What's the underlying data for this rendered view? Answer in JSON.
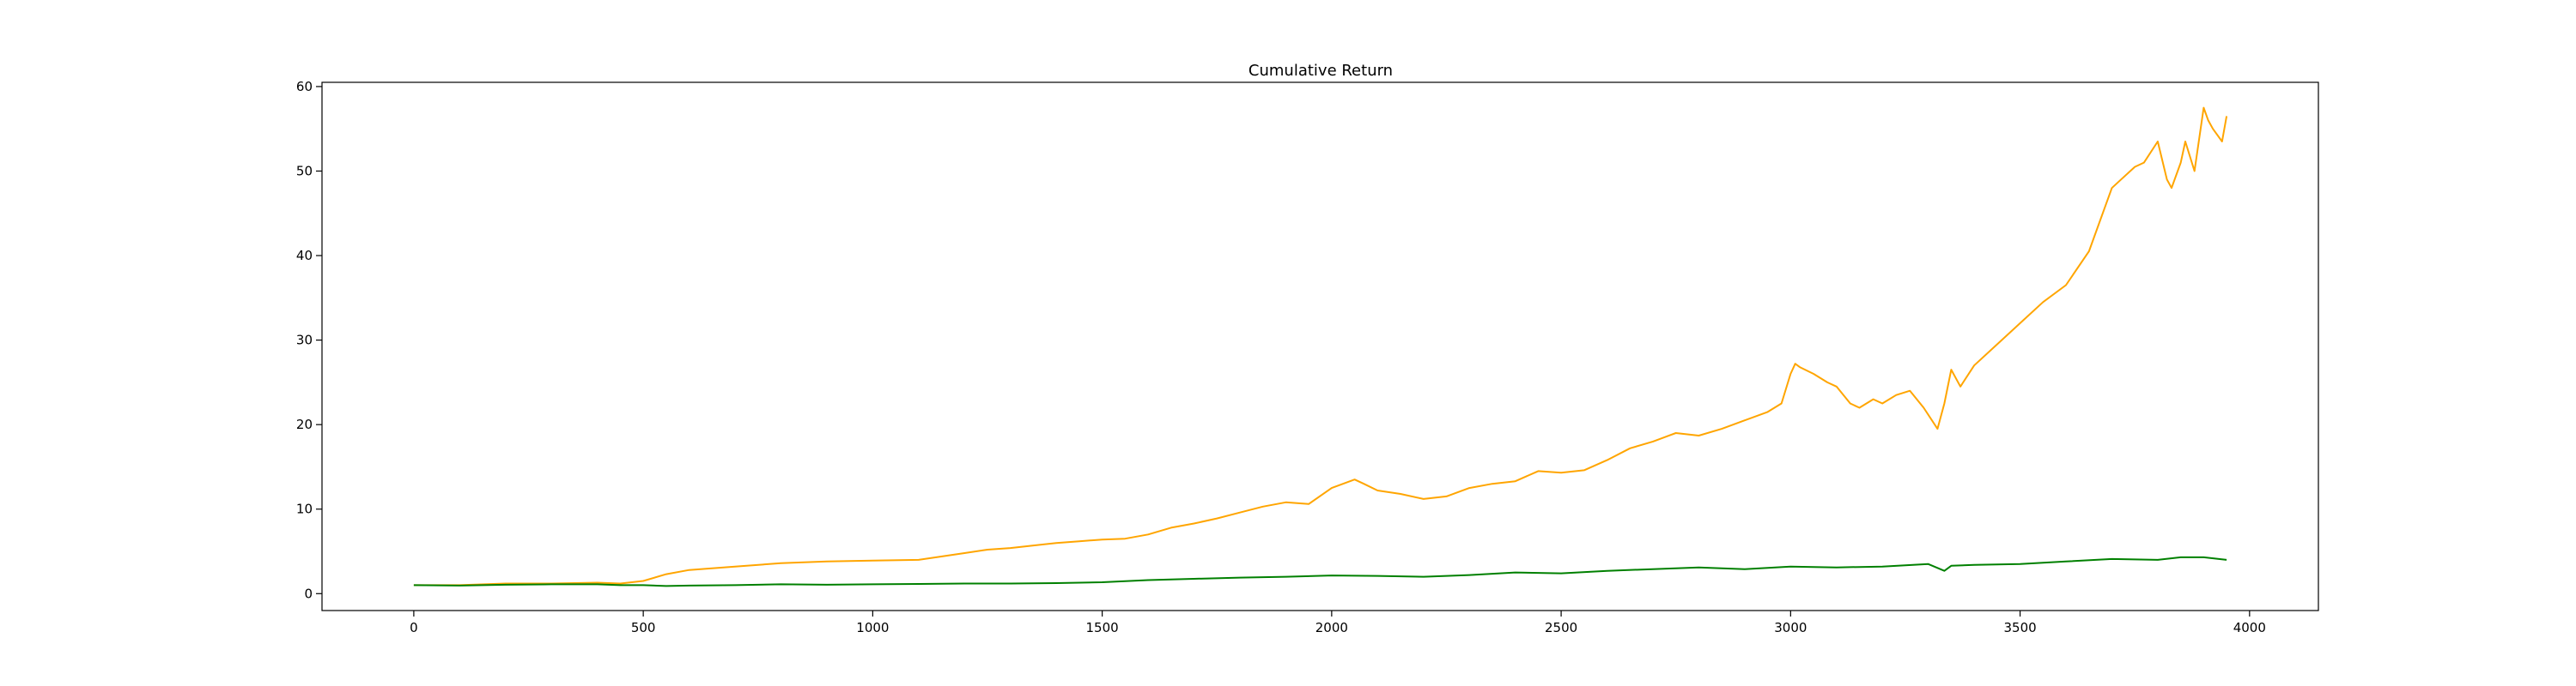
{
  "chart_data": {
    "type": "line",
    "title": "Cumulative Return",
    "xlabel": "",
    "ylabel": "",
    "xlim": [
      -200,
      4150
    ],
    "ylim": [
      -2,
      60.5
    ],
    "xticks": [
      0,
      500,
      1000,
      1500,
      2000,
      2500,
      3000,
      3500,
      4000
    ],
    "yticks": [
      0,
      10,
      20,
      30,
      40,
      50,
      60
    ],
    "grid": false,
    "legend": "none",
    "series": [
      {
        "color": "#ffa500",
        "x": [
          0,
          100,
          200,
          300,
          400,
          450,
          500,
          550,
          600,
          700,
          800,
          900,
          1000,
          1100,
          1200,
          1250,
          1300,
          1400,
          1450,
          1500,
          1550,
          1600,
          1650,
          1700,
          1750,
          1800,
          1850,
          1900,
          1950,
          2000,
          2050,
          2070,
          2100,
          2150,
          2200,
          2250,
          2300,
          2350,
          2400,
          2450,
          2500,
          2550,
          2600,
          2650,
          2700,
          2750,
          2800,
          2850,
          2900,
          2950,
          2980,
          3000,
          3010,
          3020,
          3050,
          3080,
          3100,
          3130,
          3150,
          3180,
          3200,
          3230,
          3260,
          3290,
          3320,
          3335,
          3350,
          3370,
          3400,
          3450,
          3500,
          3550,
          3600,
          3650,
          3680,
          3700,
          3720,
          3750,
          3770,
          3800,
          3820,
          3830,
          3850,
          3860,
          3880,
          3900,
          3910,
          3920,
          3940,
          3950
        ],
        "values": [
          1.0,
          1.0,
          1.2,
          1.2,
          1.3,
          1.2,
          1.5,
          2.3,
          2.8,
          3.2,
          3.6,
          3.8,
          3.9,
          4.0,
          4.8,
          5.2,
          5.4,
          6.0,
          6.2,
          6.4,
          6.5,
          7.0,
          7.8,
          8.3,
          8.9,
          9.6,
          10.3,
          10.8,
          10.6,
          12.5,
          13.5,
          13.0,
          12.2,
          11.8,
          11.2,
          11.5,
          12.5,
          13.0,
          13.3,
          14.5,
          14.3,
          14.6,
          15.8,
          17.2,
          18.0,
          19.0,
          18.7,
          19.5,
          20.5,
          21.5,
          22.5,
          26.0,
          27.2,
          26.8,
          26.0,
          25.0,
          24.5,
          22.5,
          22.0,
          23.0,
          22.5,
          23.5,
          24.0,
          22.0,
          19.5,
          22.5,
          26.5,
          24.5,
          27.0,
          29.5,
          32.0,
          34.5,
          36.5,
          40.5,
          45.0,
          48.0,
          49.0,
          50.5,
          51.0,
          53.5,
          49.0,
          48.0,
          51.0,
          53.5,
          50.0,
          57.5,
          56.0,
          55.0,
          53.5,
          56.5
        ]
      },
      {
        "color": "#008000",
        "x": [
          0,
          100,
          200,
          300,
          400,
          450,
          500,
          550,
          600,
          700,
          800,
          900,
          1000,
          1100,
          1200,
          1300,
          1400,
          1500,
          1600,
          1700,
          1800,
          1900,
          2000,
          2100,
          2200,
          2300,
          2400,
          2500,
          2600,
          2700,
          2800,
          2900,
          3000,
          3100,
          3200,
          3300,
          3335,
          3350,
          3400,
          3500,
          3600,
          3700,
          3800,
          3850,
          3900,
          3950
        ],
        "values": [
          1.0,
          0.95,
          1.05,
          1.1,
          1.1,
          1.0,
          1.0,
          0.9,
          0.95,
          1.0,
          1.1,
          1.05,
          1.1,
          1.15,
          1.2,
          1.2,
          1.25,
          1.35,
          1.6,
          1.75,
          1.9,
          2.0,
          2.15,
          2.1,
          2.0,
          2.2,
          2.5,
          2.4,
          2.7,
          2.9,
          3.1,
          2.9,
          3.2,
          3.1,
          3.2,
          3.5,
          2.7,
          3.3,
          3.4,
          3.5,
          3.8,
          4.1,
          4.0,
          4.3,
          4.3,
          4.0
        ]
      }
    ]
  }
}
